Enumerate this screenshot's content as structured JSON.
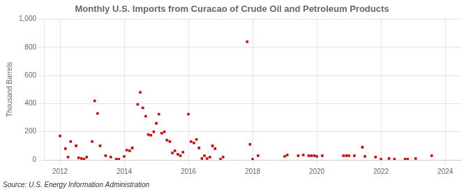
{
  "chart_data": {
    "type": "scatter",
    "title": "Monthly U.S. Imports from Curacao of Crude Oil and Petroleum Products",
    "ylabel": "Thousand Barrels",
    "annotations": [
      "Source: U.S. Energy Information Administration"
    ],
    "color": "#cc0000",
    "marker": "square",
    "grid": true,
    "xlim": [
      2011.5,
      2024.5
    ],
    "xticks": [
      2012,
      2014,
      2016,
      2018,
      2020,
      2022,
      2024
    ],
    "ylim": [
      0,
      1000
    ],
    "yticks": [
      0,
      200,
      400,
      600,
      800,
      {
        "value": 1000,
        "label": "1,000"
      }
    ],
    "x": [
      2012.0,
      2012.17,
      2012.25,
      2012.33,
      2012.5,
      2012.58,
      2012.67,
      2012.75,
      2012.83,
      2013.0,
      2013.08,
      2013.17,
      2013.25,
      2013.42,
      2013.58,
      2013.75,
      2013.83,
      2014.0,
      2014.08,
      2014.17,
      2014.25,
      2014.42,
      2014.5,
      2014.58,
      2014.67,
      2014.75,
      2014.83,
      2014.92,
      2015.0,
      2015.08,
      2015.17,
      2015.25,
      2015.33,
      2015.42,
      2015.5,
      2015.58,
      2015.67,
      2015.75,
      2015.83,
      2016.0,
      2016.08,
      2016.17,
      2016.25,
      2016.33,
      2016.42,
      2016.5,
      2016.58,
      2016.67,
      2016.75,
      2016.83,
      2017.0,
      2017.08,
      2017.83,
      2017.92,
      2018.0,
      2018.17,
      2019.0,
      2019.08,
      2019.42,
      2019.58,
      2019.75,
      2019.83,
      2019.92,
      2020.0,
      2020.17,
      2020.83,
      2020.92,
      2021.0,
      2021.17,
      2021.42,
      2021.5,
      2021.83,
      2022.0,
      2022.25,
      2022.42,
      2022.75,
      2022.83,
      2023.08,
      2023.58
    ],
    "values": [
      170,
      80,
      20,
      130,
      100,
      15,
      10,
      5,
      20,
      130,
      420,
      330,
      100,
      30,
      20,
      5,
      5,
      25,
      70,
      65,
      85,
      395,
      480,
      370,
      310,
      180,
      175,
      200,
      260,
      325,
      190,
      200,
      140,
      130,
      50,
      65,
      40,
      30,
      55,
      325,
      130,
      120,
      145,
      85,
      10,
      30,
      10,
      20,
      100,
      80,
      5,
      20,
      840,
      110,
      5,
      30,
      25,
      35,
      30,
      35,
      30,
      30,
      30,
      25,
      30,
      30,
      30,
      30,
      30,
      90,
      25,
      20,
      5,
      10,
      5,
      5,
      5,
      10,
      30
    ]
  }
}
